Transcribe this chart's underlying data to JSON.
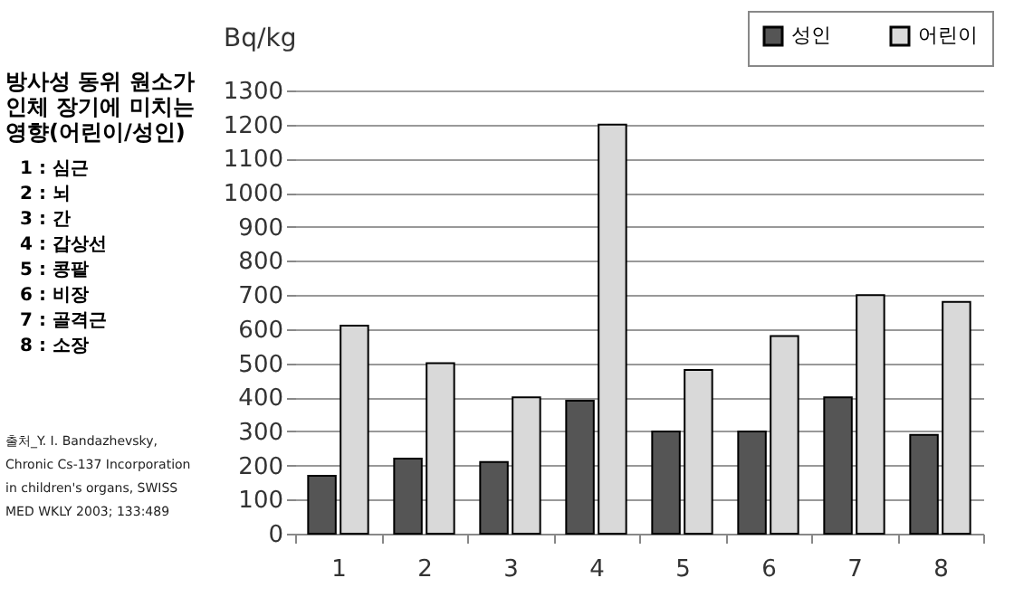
{
  "chart_data": {
    "type": "bar",
    "title": "방사성 동위 원소가 인체 장기에 미치는 영향(어린이/성인)",
    "ylabel": "Bq/kg",
    "categories": [
      "1",
      "2",
      "3",
      "4",
      "5",
      "6",
      "7",
      "8"
    ],
    "series": [
      {
        "name": "성인",
        "color": "#555555",
        "values": [
          170,
          220,
          210,
          390,
          300,
          300,
          400,
          290
        ]
      },
      {
        "name": "어린이",
        "color": "#d9d9d9",
        "values": [
          610,
          500,
          400,
          1200,
          480,
          580,
          700,
          680
        ]
      }
    ],
    "ylim": [
      0,
      1300
    ],
    "yticks": [
      0,
      100,
      200,
      300,
      400,
      500,
      600,
      700,
      800,
      900,
      1000,
      1100,
      1200,
      1300
    ],
    "grid": "y",
    "legend": "top right",
    "annotations": [
      "1 : 심근",
      "2 : 뇌",
      "3 : 간",
      "4 : 갑상선",
      "5 : 콩팥",
      "6 : 비장",
      "7 : 골격근",
      "8 : 소장",
      "출처_Y. I. Bandazhevsky, Chronic Cs-137 Incorporation in children's organs, SWISS MED WKLY 2003; 133:489"
    ]
  }
}
